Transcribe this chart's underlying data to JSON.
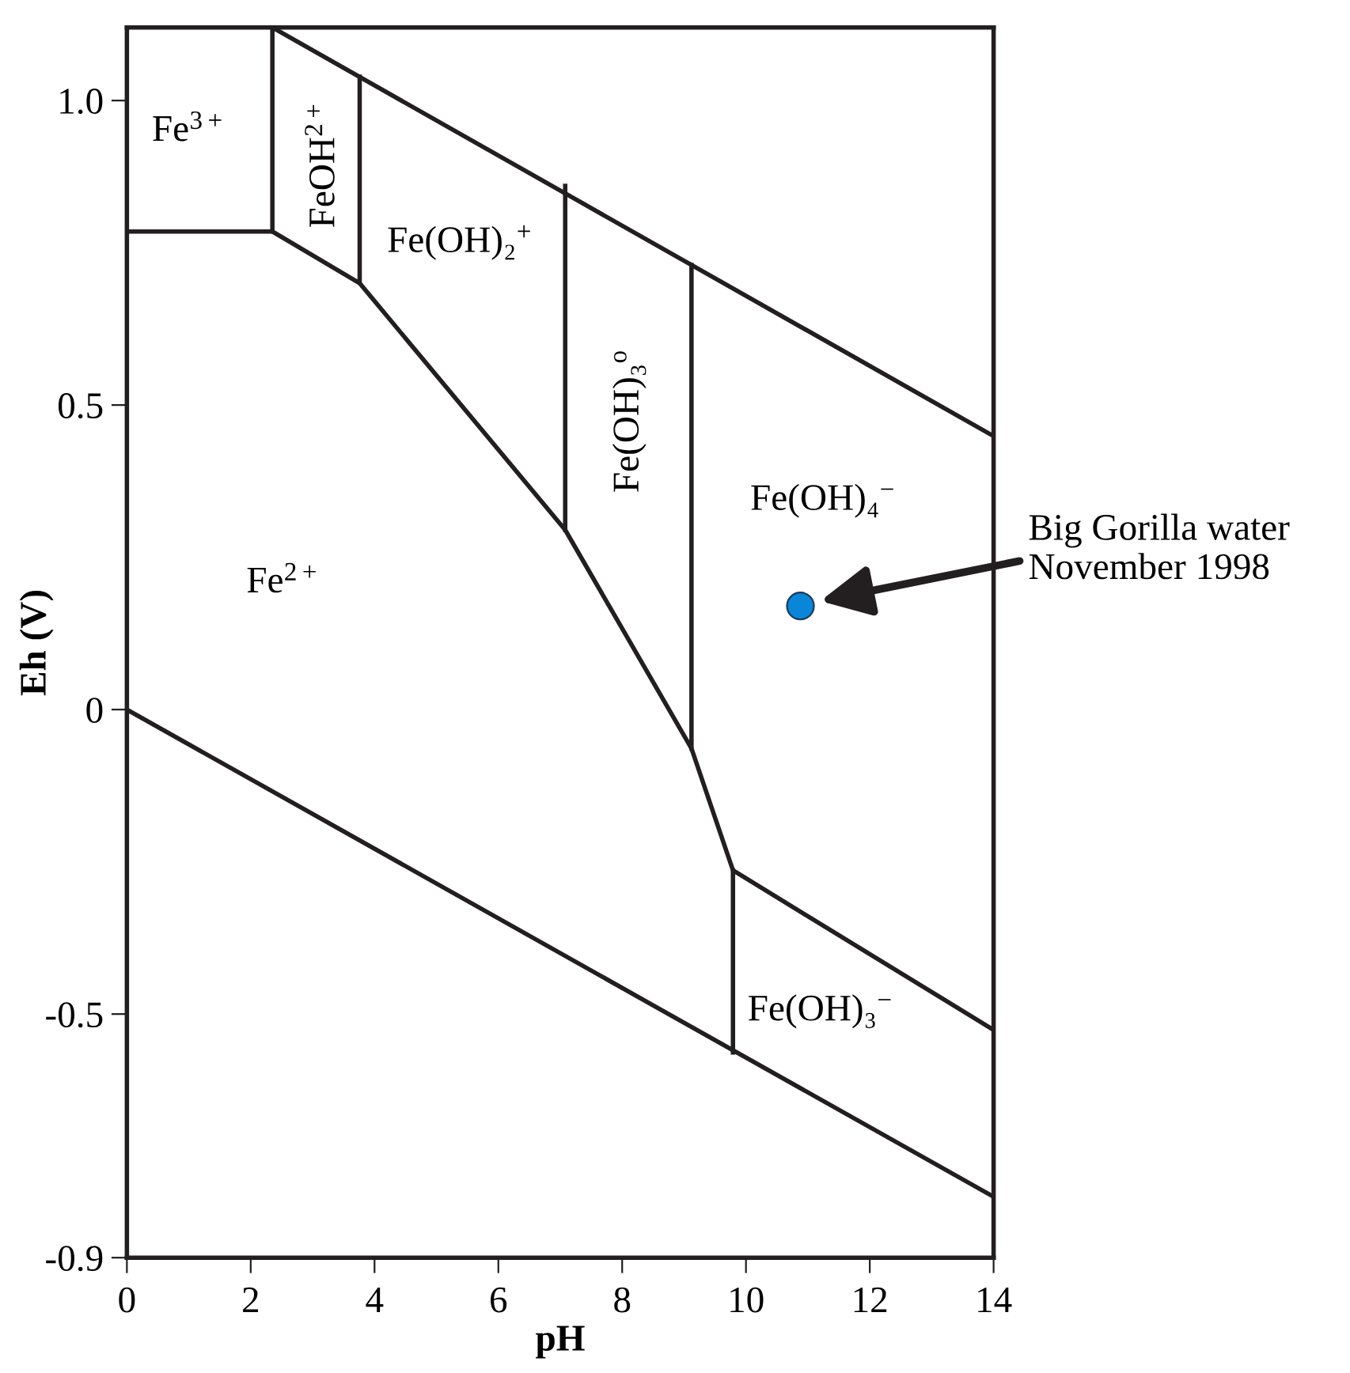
{
  "chart_data": {
    "type": "line",
    "xlabel": "pH",
    "ylabel": "Eh (V)",
    "xlim": [
      0,
      14
    ],
    "ylim": [
      -0.9,
      1.12
    ],
    "xticks": [
      0,
      2,
      4,
      6,
      8,
      10,
      12,
      14
    ],
    "yticks": [
      {
        "value": -0.9,
        "label": "-0.9"
      },
      {
        "value": -0.5,
        "label": "-0.5"
      },
      0,
      0.5,
      {
        "value": 1.0,
        "label": "1.0"
      }
    ],
    "grid": false,
    "legend": false,
    "marker": "none",
    "line_style": "solid",
    "series": [
      {
        "color": "#231f20",
        "x": [
          0,
          2.35,
          2.35
        ],
        "values": [
          0.785,
          0.785,
          1.12
        ]
      },
      {
        "color": "#231f20",
        "x": [
          2.35,
          3.76,
          3.76
        ],
        "values": [
          0.785,
          0.7,
          1.039
        ]
      },
      {
        "color": "#231f20",
        "x": [
          2.35,
          14
        ],
        "values": [
          1.12,
          0.449
        ]
      },
      {
        "color": "#231f20",
        "x": [
          3.76,
          7.08,
          9.12,
          9.79,
          14
        ],
        "values": [
          0.7,
          0.295,
          -0.064,
          -0.264,
          -0.526
        ]
      },
      {
        "color": "#231f20",
        "x": [
          7.08,
          7.08
        ],
        "values": [
          0.86,
          0.295
        ]
      },
      {
        "color": "#231f20",
        "x": [
          9.12,
          9.12
        ],
        "values": [
          0.73,
          -0.064
        ]
      },
      {
        "color": "#231f20",
        "x": [
          9.79,
          9.79
        ],
        "values": [
          -0.264,
          -0.563
        ]
      },
      {
        "color": "#231f20",
        "x": [
          0,
          14
        ],
        "values": [
          0,
          -0.8
        ]
      },
      {
        "type": "scatter",
        "color": "#0a86d8",
        "marker": "circle",
        "x": [
          10.88
        ],
        "values": [
          0.17
        ]
      }
    ],
    "annotations": [
      "Fe$^{3+}$",
      "FeOH$^{2+}$",
      "Fe(OH)₂$^{+}$",
      "Fe(OH)₃$^{o}$",
      "Fe(OH)₄$^{−}$",
      "Fe$^{2+}$",
      "Fe(OH)₃$^{−}$",
      "Big Gorilla water\nNovember 1998"
    ]
  }
}
